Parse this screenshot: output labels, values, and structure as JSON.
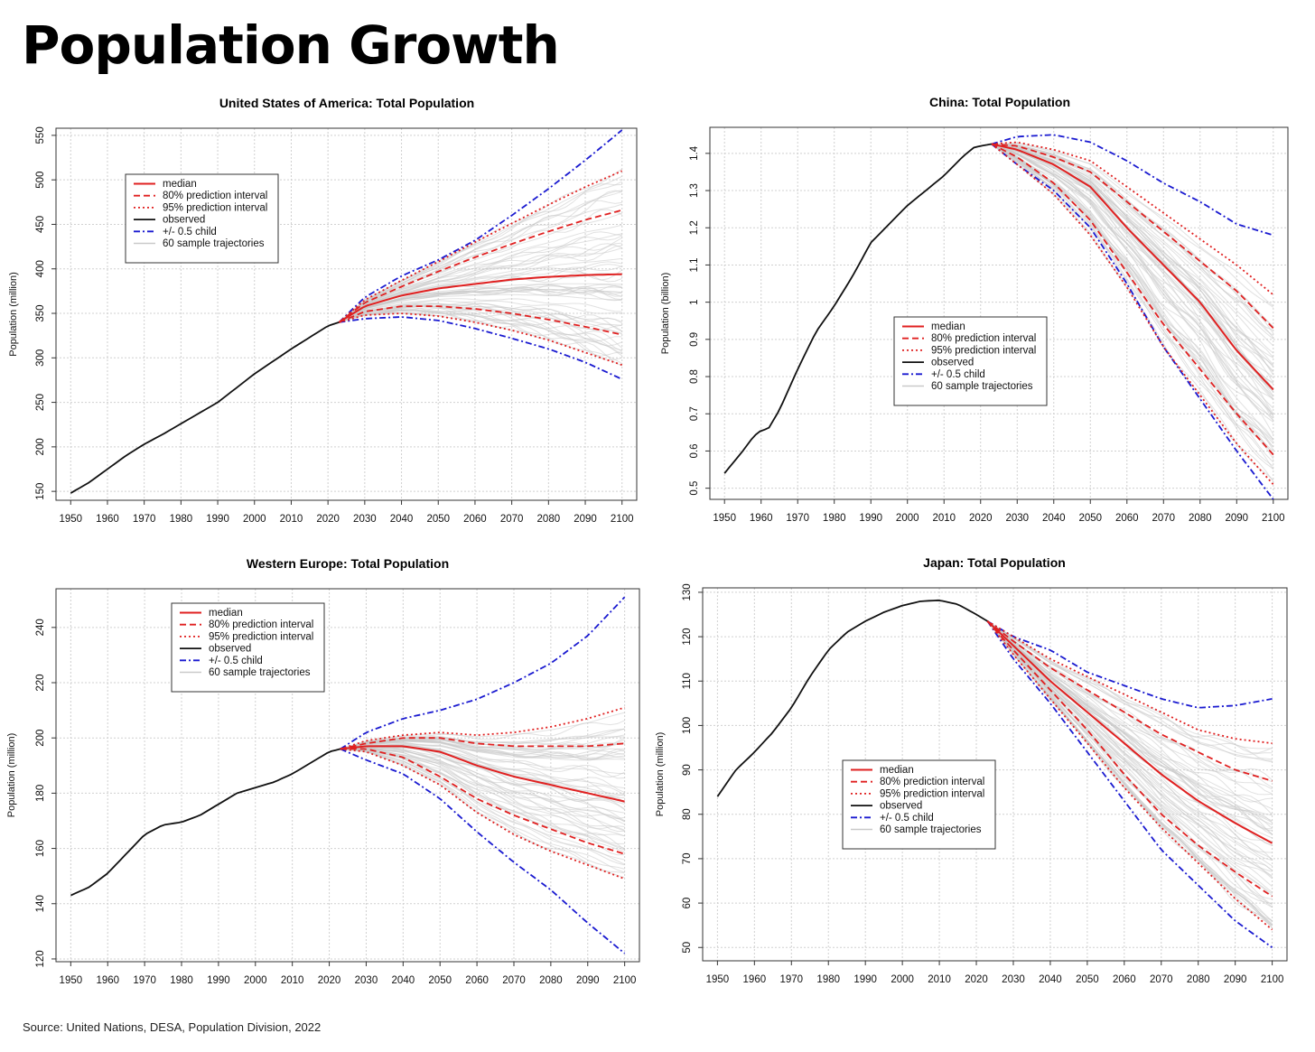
{
  "page_title": "Population Growth",
  "source": "Source: United Nations, DESA, Population Division, 2022",
  "colors": {
    "median": "#e02020",
    "interval": "#e02020",
    "observed": "#111111",
    "child": "#1a1ad0",
    "samples": "#c9c9c9",
    "grid": "#d0d0d0"
  },
  "legend_entries": [
    "median",
    "80% prediction interval",
    "95% prediction interval",
    "observed",
    "+/- 0.5 child",
    "60 sample trajectories"
  ],
  "chart_data": [
    {
      "type": "line",
      "title": "United States of America: Total Population",
      "ylabel": "Population (million)",
      "xlim": [
        1946,
        2104
      ],
      "ylim": [
        140,
        558
      ],
      "xticks": [
        1950,
        1960,
        1970,
        1980,
        1990,
        2000,
        2010,
        2020,
        2030,
        2040,
        2050,
        2060,
        2070,
        2080,
        2090,
        2100
      ],
      "yticks": [
        150,
        200,
        250,
        300,
        350,
        400,
        450,
        500,
        550
      ],
      "legend_position": "top-left",
      "observed": {
        "x": [
          1950,
          1955,
          1960,
          1965,
          1970,
          1975,
          1980,
          1985,
          1990,
          1995,
          2000,
          2005,
          2010,
          2015,
          2020,
          2023
        ],
        "y": [
          148,
          160,
          175,
          190,
          203,
          214,
          226,
          238,
          250,
          266,
          282,
          296,
          310,
          323,
          336,
          340
        ]
      },
      "median": {
        "x": [
          2023,
          2030,
          2040,
          2050,
          2060,
          2070,
          2080,
          2090,
          2100
        ],
        "y": [
          340,
          358,
          370,
          378,
          383,
          388,
          391,
          393,
          394
        ]
      },
      "pi80_upper": {
        "x": [
          2023,
          2030,
          2040,
          2050,
          2060,
          2070,
          2080,
          2090,
          2100
        ],
        "y": [
          340,
          362,
          380,
          397,
          413,
          428,
          442,
          455,
          466
        ]
      },
      "pi80_lower": {
        "x": [
          2023,
          2030,
          2040,
          2050,
          2060,
          2070,
          2080,
          2090,
          2100
        ],
        "y": [
          340,
          352,
          358,
          358,
          355,
          350,
          343,
          335,
          326
        ]
      },
      "pi95_upper": {
        "x": [
          2023,
          2030,
          2040,
          2050,
          2060,
          2070,
          2080,
          2090,
          2100
        ],
        "y": [
          340,
          365,
          387,
          408,
          430,
          451,
          472,
          492,
          510
        ]
      },
      "pi95_lower": {
        "x": [
          2023,
          2030,
          2040,
          2050,
          2060,
          2070,
          2080,
          2090,
          2100
        ],
        "y": [
          340,
          348,
          350,
          347,
          340,
          331,
          320,
          306,
          292
        ]
      },
      "child_upper": {
        "x": [
          2023,
          2030,
          2040,
          2050,
          2060,
          2070,
          2080,
          2090,
          2100
        ],
        "y": [
          340,
          368,
          392,
          410,
          432,
          460,
          490,
          522,
          556
        ]
      },
      "child_lower": {
        "x": [
          2023,
          2030,
          2040,
          2050,
          2060,
          2070,
          2080,
          2090,
          2100
        ],
        "y": [
          340,
          344,
          346,
          342,
          333,
          322,
          310,
          295,
          276
        ]
      }
    },
    {
      "type": "line",
      "title": "China: Total Population",
      "ylabel": "Population (billion)",
      "xlim": [
        1946,
        2104
      ],
      "ylim": [
        0.47,
        1.47
      ],
      "xticks": [
        1950,
        1960,
        1970,
        1980,
        1990,
        2000,
        2010,
        2020,
        2030,
        2040,
        2050,
        2060,
        2070,
        2080,
        2090,
        2100
      ],
      "yticks": [
        0.5,
        0.6,
        0.7,
        0.8,
        0.9,
        1,
        1.1,
        1.2,
        1.3,
        1.4
      ],
      "ytick_labels": [
        "0.5",
        "0.6",
        "0.7",
        "0.8",
        "0.9",
        "1",
        "1.1",
        "1.2",
        "1.3",
        "1.4"
      ],
      "legend_position": "center",
      "observed": {
        "x": [
          1950,
          1955,
          1958,
          1960,
          1962,
          1965,
          1970,
          1975,
          1980,
          1985,
          1990,
          1995,
          2000,
          2005,
          2010,
          2015,
          2018,
          2020,
          2023
        ],
        "y": [
          0.54,
          0.6,
          0.64,
          0.655,
          0.66,
          0.71,
          0.82,
          0.92,
          0.99,
          1.07,
          1.16,
          1.21,
          1.26,
          1.3,
          1.34,
          1.39,
          1.415,
          1.42,
          1.425
        ]
      },
      "median": {
        "x": [
          2023,
          2030,
          2040,
          2050,
          2060,
          2070,
          2080,
          2090,
          2100
        ],
        "y": [
          1.425,
          1.41,
          1.37,
          1.31,
          1.2,
          1.1,
          1.0,
          0.87,
          0.765
        ]
      },
      "pi80_upper": {
        "x": [
          2023,
          2030,
          2040,
          2050,
          2060,
          2070,
          2080,
          2090,
          2100
        ],
        "y": [
          1.425,
          1.42,
          1.39,
          1.35,
          1.27,
          1.19,
          1.11,
          1.03,
          0.93
        ]
      },
      "pi80_lower": {
        "x": [
          2023,
          2030,
          2040,
          2050,
          2060,
          2070,
          2080,
          2090,
          2100
        ],
        "y": [
          1.425,
          1.39,
          1.32,
          1.22,
          1.08,
          0.94,
          0.82,
          0.7,
          0.59
        ]
      },
      "pi95_upper": {
        "x": [
          2023,
          2030,
          2040,
          2050,
          2060,
          2070,
          2080,
          2090,
          2100
        ],
        "y": [
          1.425,
          1.43,
          1.41,
          1.38,
          1.31,
          1.24,
          1.17,
          1.1,
          1.02
        ]
      },
      "pi95_lower": {
        "x": [
          2023,
          2030,
          2040,
          2050,
          2060,
          2070,
          2080,
          2090,
          2100
        ],
        "y": [
          1.425,
          1.37,
          1.29,
          1.18,
          1.04,
          0.88,
          0.75,
          0.62,
          0.51
        ]
      },
      "child_upper": {
        "x": [
          2023,
          2030,
          2040,
          2050,
          2060,
          2070,
          2080,
          2090,
          2100
        ],
        "y": [
          1.425,
          1.445,
          1.45,
          1.43,
          1.38,
          1.32,
          1.27,
          1.21,
          1.18
        ]
      },
      "child_lower": {
        "x": [
          2023,
          2030,
          2040,
          2050,
          2060,
          2070,
          2080,
          2090,
          2100
        ],
        "y": [
          1.425,
          1.37,
          1.3,
          1.2,
          1.05,
          0.88,
          0.74,
          0.6,
          0.47
        ]
      }
    },
    {
      "type": "line",
      "title": "Western Europe: Total Population",
      "ylabel": "Population (million)",
      "xlim": [
        1946,
        2104
      ],
      "ylim": [
        119,
        254
      ],
      "xticks": [
        1950,
        1960,
        1970,
        1980,
        1990,
        2000,
        2010,
        2020,
        2030,
        2040,
        2050,
        2060,
        2070,
        2080,
        2090,
        2100
      ],
      "yticks": [
        120,
        140,
        160,
        180,
        200,
        220,
        240
      ],
      "legend_position": "top-center",
      "observed": {
        "x": [
          1950,
          1955,
          1960,
          1965,
          1970,
          1975,
          1980,
          1985,
          1990,
          1995,
          2000,
          2005,
          2010,
          2015,
          2020,
          2023
        ],
        "y": [
          143,
          146,
          151,
          158,
          165,
          168.5,
          169.5,
          172,
          176,
          180,
          182,
          184,
          187,
          191,
          195,
          196
        ]
      },
      "median": {
        "x": [
          2023,
          2030,
          2040,
          2050,
          2060,
          2070,
          2080,
          2090,
          2100
        ],
        "y": [
          196,
          197,
          197,
          195,
          190,
          186,
          183,
          180,
          177
        ]
      },
      "pi80_upper": {
        "x": [
          2023,
          2030,
          2040,
          2050,
          2060,
          2070,
          2080,
          2090,
          2100
        ],
        "y": [
          196,
          198,
          200,
          200,
          198,
          197,
          197,
          197,
          198
        ]
      },
      "pi80_lower": {
        "x": [
          2023,
          2030,
          2040,
          2050,
          2060,
          2070,
          2080,
          2090,
          2100
        ],
        "y": [
          196,
          196,
          193,
          186,
          178,
          172,
          167,
          162,
          158
        ]
      },
      "pi95_upper": {
        "x": [
          2023,
          2030,
          2040,
          2050,
          2060,
          2070,
          2080,
          2090,
          2100
        ],
        "y": [
          196,
          199,
          201,
          202,
          201,
          202,
          204,
          207,
          211
        ]
      },
      "pi95_lower": {
        "x": [
          2023,
          2030,
          2040,
          2050,
          2060,
          2070,
          2080,
          2090,
          2100
        ],
        "y": [
          196,
          195,
          190,
          183,
          173,
          165,
          159,
          154,
          149
        ]
      },
      "child_upper": {
        "x": [
          2023,
          2030,
          2040,
          2050,
          2060,
          2070,
          2080,
          2090,
          2100
        ],
        "y": [
          196,
          202,
          207,
          210,
          214,
          220,
          227,
          237,
          251
        ]
      },
      "child_lower": {
        "x": [
          2023,
          2030,
          2040,
          2050,
          2060,
          2070,
          2080,
          2090,
          2100
        ],
        "y": [
          196,
          192,
          187,
          178,
          166,
          155,
          145,
          133,
          122
        ]
      }
    },
    {
      "type": "line",
      "title": "Japan: Total Population",
      "ylabel": "Population (million)",
      "xlim": [
        1946,
        2104
      ],
      "ylim": [
        47,
        131
      ],
      "xticks": [
        1950,
        1960,
        1970,
        1980,
        1990,
        2000,
        2010,
        2020,
        2030,
        2040,
        2050,
        2060,
        2070,
        2080,
        2090,
        2100
      ],
      "yticks": [
        50,
        60,
        70,
        80,
        90,
        100,
        110,
        120,
        130
      ],
      "legend_position": "center-left",
      "observed": {
        "x": [
          1950,
          1955,
          1960,
          1965,
          1970,
          1975,
          1980,
          1985,
          1990,
          1995,
          2000,
          2005,
          2010,
          2015,
          2020,
          2023
        ],
        "y": [
          84,
          90,
          94,
          98.5,
          104,
          111,
          117,
          121,
          123.5,
          125.5,
          127,
          128,
          128.2,
          127.3,
          125,
          123.5
        ]
      },
      "median": {
        "x": [
          2023,
          2030,
          2040,
          2050,
          2060,
          2070,
          2080,
          2090,
          2100
        ],
        "y": [
          123.5,
          118,
          110,
          103,
          96,
          89,
          83,
          78,
          73.5
        ]
      },
      "pi80_upper": {
        "x": [
          2023,
          2030,
          2040,
          2050,
          2060,
          2070,
          2080,
          2090,
          2100
        ],
        "y": [
          123.5,
          119,
          113,
          108,
          103,
          98,
          94,
          90,
          87.5
        ]
      },
      "pi80_lower": {
        "x": [
          2023,
          2030,
          2040,
          2050,
          2060,
          2070,
          2080,
          2090,
          2100
        ],
        "y": [
          123.5,
          117,
          108,
          99,
          89,
          80,
          73,
          67,
          61.5
        ]
      },
      "pi95_upper": {
        "x": [
          2023,
          2030,
          2040,
          2050,
          2060,
          2070,
          2080,
          2090,
          2100
        ],
        "y": [
          123.5,
          120,
          115,
          111,
          107,
          103,
          99,
          97,
          96
        ]
      },
      "pi95_lower": {
        "x": [
          2023,
          2030,
          2040,
          2050,
          2060,
          2070,
          2080,
          2090,
          2100
        ],
        "y": [
          123.5,
          116,
          106,
          96,
          86,
          77,
          69,
          61,
          54
        ]
      },
      "child_upper": {
        "x": [
          2023,
          2030,
          2040,
          2050,
          2060,
          2070,
          2080,
          2090,
          2100
        ],
        "y": [
          123.5,
          120,
          117,
          112,
          109,
          106,
          104,
          104.5,
          106
        ]
      },
      "child_lower": {
        "x": [
          2023,
          2030,
          2040,
          2050,
          2060,
          2070,
          2080,
          2090,
          2100
        ],
        "y": [
          123.5,
          115,
          105,
          94,
          83,
          72,
          64,
          56,
          50
        ]
      }
    }
  ]
}
